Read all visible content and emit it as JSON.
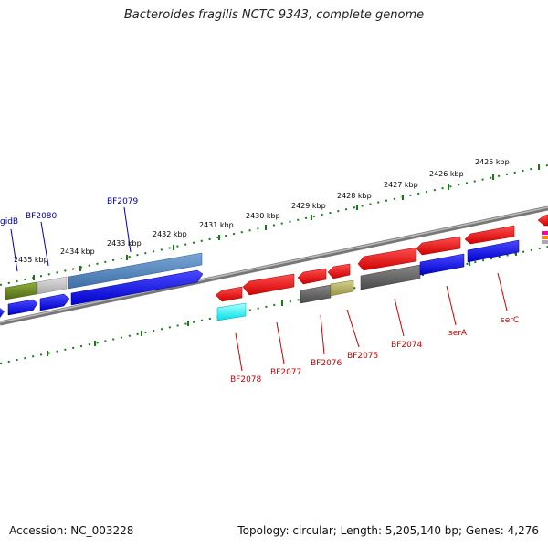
{
  "title": "Bacteroides fragilis NCTC 9343, complete genome",
  "footer": {
    "accession": "Accession: NC_003228",
    "summary": "Topology: circular; Length: 5,205,140 bp; Genes: 4,276"
  },
  "ticks": [
    "2435 kbp",
    "2434 kbp",
    "2433 kbp",
    "2432 kbp",
    "2431 kbp",
    "2430 kbp",
    "2429 kbp",
    "2428 kbp",
    "2427 kbp",
    "2426 kbp",
    "2425 kbp"
  ],
  "genes_forward": [
    "gidB",
    "BF2080",
    "BF2079"
  ],
  "genes_reverse": [
    "BF2078",
    "BF2077",
    "BF2076",
    "BF2075",
    "BF2074",
    "serA",
    "serC"
  ],
  "colors": {
    "forward_label": "#0000aa",
    "reverse_label": "#cc0000",
    "tick": "#1a7a1a",
    "backbone": "#888888"
  }
}
